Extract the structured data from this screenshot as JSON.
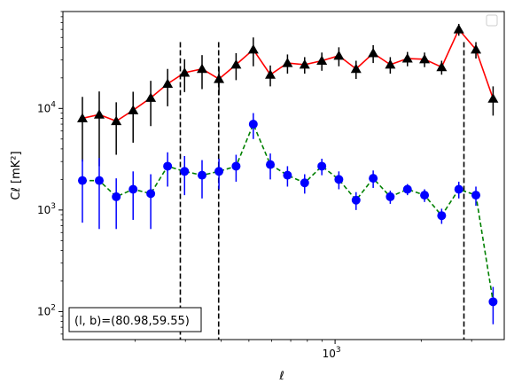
{
  "chart_data": {
    "type": "line",
    "title": "",
    "xlabel": "ℓ",
    "ylabel": "Cℓ  [mK²]",
    "xscale": "log",
    "yscale": "log",
    "xlim": [
      112,
      3900
    ],
    "ylim": [
      53,
      90000
    ],
    "x_major_ticks": [
      {
        "value": 1000,
        "base": "10",
        "exp": "3"
      }
    ],
    "y_major_ticks": [
      {
        "value": 100,
        "base": "10",
        "exp": "2"
      },
      {
        "value": 1000,
        "base": "10",
        "exp": "3"
      },
      {
        "value": 10000,
        "base": "10",
        "exp": "4"
      }
    ],
    "grid": false,
    "legend": "top-right (empty)",
    "annotation": "(l, b)=(80.98,59.55)",
    "vlines": [
      288,
      392,
      2820
    ],
    "series": [
      {
        "color": "#ff0000",
        "marker": "triangle",
        "marker_color": "#000000",
        "linestyle": "solid",
        "x": [
          131,
          150,
          172,
          197,
          227,
          260,
          298,
          343,
          393,
          451,
          518,
          594,
          682,
          783,
          899,
          1031,
          1184,
          1359,
          1559,
          1790,
          2054,
          2357,
          2706,
          3105,
          3565
        ],
        "y": [
          8000,
          8700,
          7500,
          9600,
          12700,
          17500,
          22500,
          24500,
          19500,
          27000,
          38000,
          21500,
          28000,
          27000,
          29500,
          33000,
          24500,
          35000,
          27000,
          31000,
          30500,
          25500,
          60000,
          38000,
          12500
        ],
        "err": [
          5000,
          6000,
          4000,
          5000,
          6000,
          7000,
          8000,
          9000,
          6000,
          8000,
          12000,
          5000,
          6000,
          5000,
          6000,
          7000,
          5000,
          7000,
          5000,
          5000,
          5000,
          4000,
          8000,
          7000,
          4000
        ]
      },
      {
        "color": "#008000",
        "marker": "circle",
        "marker_color": "#0000ff",
        "linestyle": "dashed",
        "x": [
          131,
          150,
          172,
          197,
          227,
          260,
          298,
          343,
          393,
          451,
          518,
          594,
          682,
          783,
          899,
          1031,
          1184,
          1359,
          1559,
          1790,
          2054,
          2357,
          2706,
          3105,
          3565
        ],
        "y": [
          1950,
          1950,
          1350,
          1600,
          1450,
          2700,
          2400,
          2200,
          2400,
          2700,
          7000,
          2800,
          2200,
          1850,
          2700,
          2000,
          1250,
          2050,
          1350,
          1600,
          1400,
          880,
          1600,
          1400,
          125
        ],
        "err": [
          1200,
          1300,
          700,
          800,
          800,
          1000,
          1000,
          900,
          800,
          800,
          2000,
          800,
          500,
          400,
          500,
          400,
          250,
          400,
          200,
          200,
          200,
          150,
          300,
          300,
          50
        ]
      }
    ]
  }
}
